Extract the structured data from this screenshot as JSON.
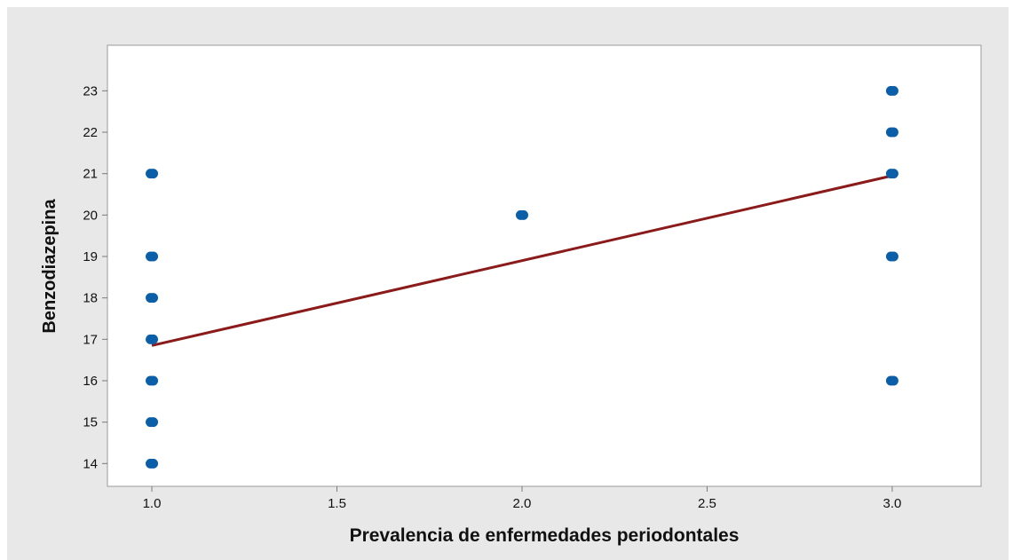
{
  "chart_data": {
    "type": "scatter",
    "title": "",
    "xlabel": "Prevalencia de enfermedades periodontales",
    "ylabel": "Benzodiazepina",
    "xlim": [
      0.88,
      3.24
    ],
    "ylim": [
      13.45,
      24.1
    ],
    "x_ticks": [
      "1.0",
      "1.5",
      "2.0",
      "2.5",
      "3.0"
    ],
    "y_ticks": [
      "14",
      "15",
      "16",
      "17",
      "18",
      "19",
      "20",
      "21",
      "22",
      "23"
    ],
    "grid": false,
    "legend": "none",
    "series": [
      {
        "points": [
          {
            "x": 1.0,
            "y": 21
          },
          {
            "x": 1.0,
            "y": 19
          },
          {
            "x": 1.0,
            "y": 18
          },
          {
            "x": 1.0,
            "y": 17
          },
          {
            "x": 1.0,
            "y": 16
          },
          {
            "x": 1.0,
            "y": 15
          },
          {
            "x": 1.0,
            "y": 14
          },
          {
            "x": 2.0,
            "y": 20
          },
          {
            "x": 3.0,
            "y": 23
          },
          {
            "x": 3.0,
            "y": 22
          },
          {
            "x": 3.0,
            "y": 21
          },
          {
            "x": 3.0,
            "y": 19
          },
          {
            "x": 3.0,
            "y": 16
          }
        ],
        "color": "#0b5ea8"
      }
    ],
    "fit_line": {
      "x": [
        1.0,
        3.0
      ],
      "y": [
        16.85,
        20.95
      ],
      "color": "#8b1a1a"
    },
    "background_color": "#e8e8e8",
    "plot_area_color": "#ffffff"
  }
}
